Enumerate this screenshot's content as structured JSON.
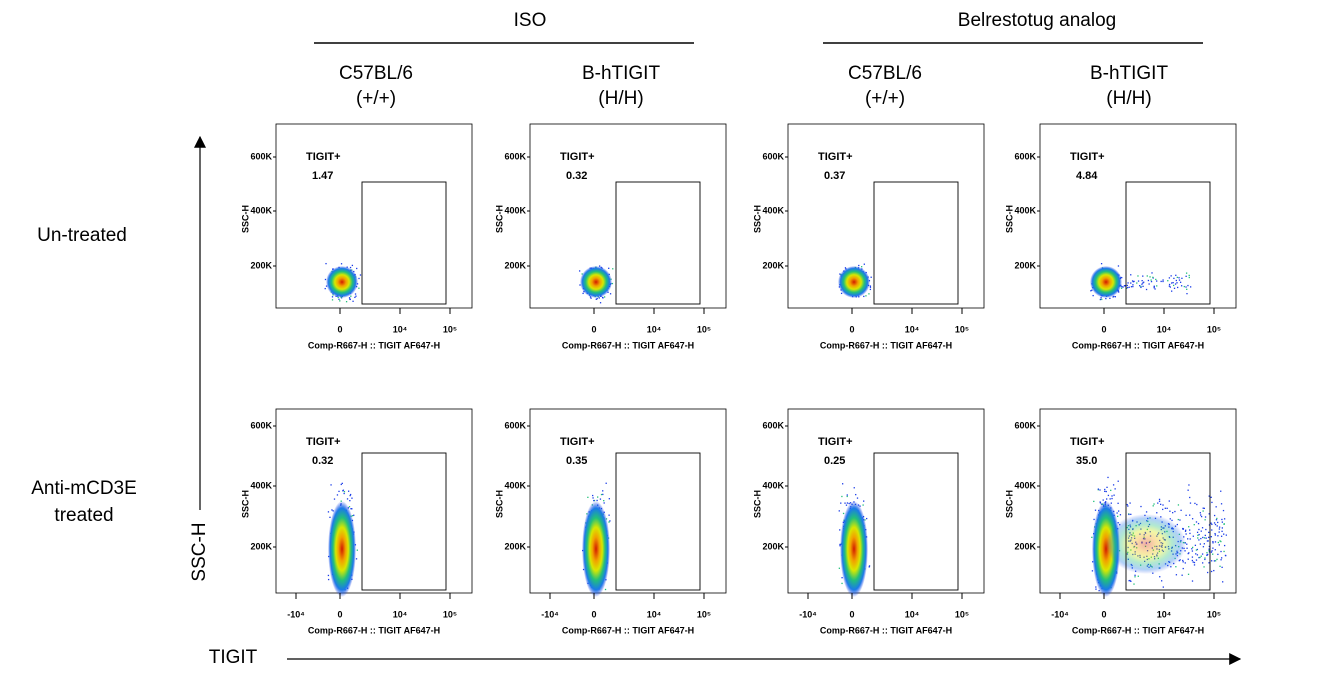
{
  "header": {
    "groups": [
      "ISO",
      "Belrestotug analog"
    ],
    "columns": [
      [
        "C57BL/6",
        "(+/+)"
      ],
      [
        "B-hTIGIT",
        "(H/H)"
      ],
      [
        "C57BL/6",
        "(+/+)"
      ],
      [
        "B-hTIGIT",
        "(H/H)"
      ]
    ]
  },
  "rows": [
    [
      "Un-treated"
    ],
    [
      "Anti-mCD3E",
      "treated"
    ]
  ],
  "axes": {
    "y": "SSC-H",
    "x": "TIGIT"
  },
  "panels": [
    {
      "gate": "TIGIT+",
      "value": "1.47",
      "ylabel": "SSC-H",
      "xlabel": "Comp-R667-H :: TIGIT AF647-H",
      "yticks": [
        "600K",
        "400K",
        "200K"
      ],
      "xticks": [
        "0",
        "10⁴",
        "10⁵"
      ]
    },
    {
      "gate": "TIGIT+",
      "value": "0.32",
      "ylabel": "SSC-H",
      "xlabel": "Comp-R667-H :: TIGIT AF647-H",
      "yticks": [
        "600K",
        "400K",
        "200K"
      ],
      "xticks": [
        "0",
        "10⁴",
        "10⁵"
      ]
    },
    {
      "gate": "TIGIT+",
      "value": "0.37",
      "ylabel": "SSC-H",
      "xlabel": "Comp-R667-H :: TIGIT AF647-H",
      "yticks": [
        "600K",
        "400K",
        "200K"
      ],
      "xticks": [
        "0",
        "10⁴",
        "10⁵"
      ]
    },
    {
      "gate": "TIGIT+",
      "value": "4.84",
      "ylabel": "SSC-H",
      "xlabel": "Comp-R667-H :: TIGIT AF647-H",
      "yticks": [
        "600K",
        "400K",
        "200K"
      ],
      "xticks": [
        "0",
        "10⁴",
        "10⁵"
      ]
    },
    {
      "gate": "TIGIT+",
      "value": "0.32",
      "ylabel": "SSC-H",
      "xlabel": "Comp-R667-H :: TIGIT AF647-H",
      "yticks": [
        "600K",
        "400K",
        "200K"
      ],
      "xticks": [
        "-10⁴",
        "0",
        "10⁴",
        "10⁵"
      ]
    },
    {
      "gate": "TIGIT+",
      "value": "0.35",
      "ylabel": "SSC-H",
      "xlabel": "Comp-R667-H :: TIGIT AF647-H",
      "yticks": [
        "600K",
        "400K",
        "200K"
      ],
      "xticks": [
        "-10⁴",
        "0",
        "10⁴",
        "10⁵"
      ]
    },
    {
      "gate": "TIGIT+",
      "value": "0.25",
      "ylabel": "SSC-H",
      "xlabel": "Comp-R667-H :: TIGIT AF647-H",
      "yticks": [
        "600K",
        "400K",
        "200K"
      ],
      "xticks": [
        "-10⁴",
        "0",
        "10⁴",
        "10⁵"
      ]
    },
    {
      "gate": "TIGIT+",
      "value": "35.0",
      "ylabel": "SSC-H",
      "xlabel": "Comp-R667-H :: TIGIT AF647-H",
      "yticks": [
        "600K",
        "400K",
        "200K"
      ],
      "xticks": [
        "-10⁴",
        "0",
        "10⁴",
        "10⁵"
      ]
    }
  ]
}
